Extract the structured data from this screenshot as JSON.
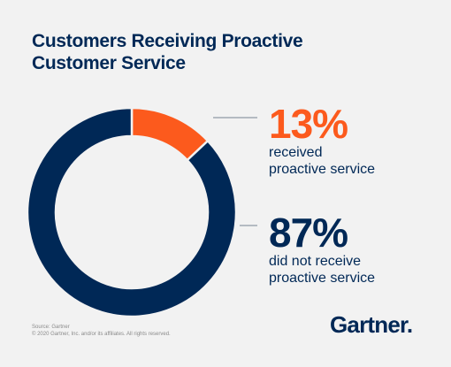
{
  "chart_data": {
    "type": "pie",
    "title": "Customers Receiving Proactive Customer Service",
    "title_lines": [
      "Customers Receiving Proactive",
      "Customer Service"
    ],
    "hole": true,
    "slices": [
      {
        "value": 13,
        "value_label": "13%",
        "label_lines": [
          "received",
          "proactive service"
        ],
        "color": "#fc5a1d"
      },
      {
        "value": 87,
        "value_label": "87%",
        "label_lines": [
          "did not receive",
          "proactive service"
        ],
        "color": "#002856"
      }
    ]
  },
  "footer": {
    "source": "Source: Gartner",
    "copyright": "© 2020 Gartner, Inc. and/or its affiliates. All rights reserved."
  },
  "logo": {
    "text": "Gartner."
  },
  "colors": {
    "background": "#f2f2f2",
    "brand_navy": "#002856",
    "accent_orange": "#fc5a1d",
    "leader_line": "#8f9aa6"
  }
}
